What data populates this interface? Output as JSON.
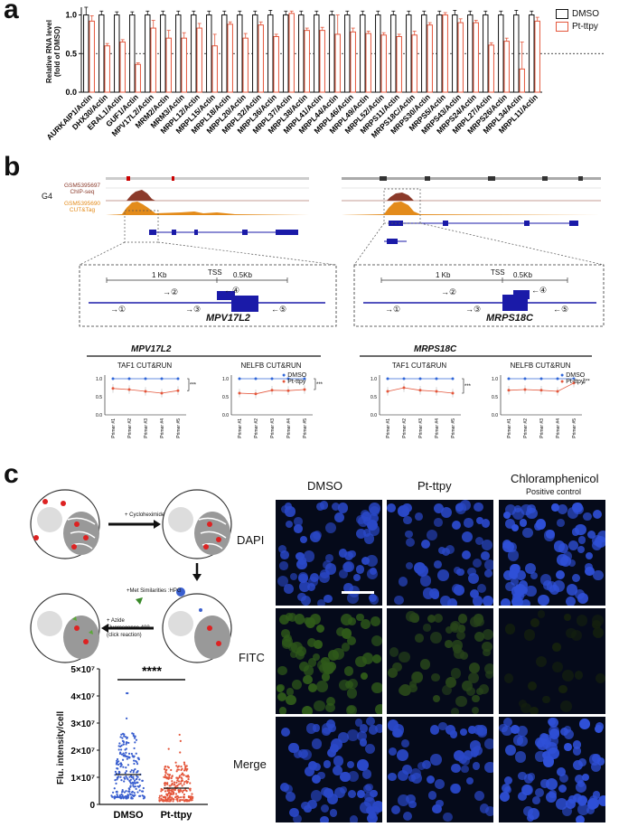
{
  "panel_a": {
    "letter": "a",
    "ylabel_line1": "Relative RNA level",
    "ylabel_line2": "(fold of DMSO)",
    "legend": [
      "DMSO",
      "Pt-ttpy"
    ],
    "colors": {
      "dmso": "#111111",
      "pt": "#e4573c"
    }
  },
  "chart_data": [
    {
      "type": "bar",
      "title": "",
      "ylabel": "Relative RNA level (fold of DMSO)",
      "ylim": [
        0,
        1.1
      ],
      "yticks": [
        0.0,
        0.5,
        1.0
      ],
      "reference_line": 0.5,
      "categories": [
        "AURKAIP1/Actin",
        "DHX30/Actin",
        "ERAL1/Actin",
        "GUF1/Actin",
        "MPV17L2/Actin",
        "MRM2/Actin",
        "MRM3/Actin",
        "MRPL12/Actin",
        "MRPL15/Actin",
        "MRPL18/Actin",
        "MRPL20/Actin",
        "MRPL32/Actin",
        "MRPL36/Actin",
        "MRPL37/Actin",
        "MRPL38/Actin",
        "MRPL41/Actin",
        "MRPL44/Actin",
        "MRPL46/Actin",
        "MRPL49/Actin",
        "MRPL52/Actin",
        "MRPS11/Actin",
        "MRPS18C/Actin",
        "MRPS30/Actin",
        "MRPS5/Actin",
        "MRPS43/Actin",
        "MRPS24/Actin",
        "MRPL27/Actin",
        "MRPS26/Actin",
        "MRPL34/Actin",
        "MRPL11/Actin"
      ],
      "series": [
        {
          "name": "DMSO",
          "values": [
            1,
            1,
            1,
            1,
            1,
            1,
            1,
            1,
            1,
            1,
            1,
            1,
            1,
            1,
            1,
            1,
            1,
            1,
            1,
            1,
            1,
            1,
            1,
            1,
            1,
            1,
            1,
            1,
            1,
            1
          ],
          "errors": [
            0.1,
            0.05,
            0.04,
            0.04,
            0.05,
            0.05,
            0.05,
            0.05,
            0.05,
            0.05,
            0.05,
            0.05,
            0.06,
            0.05,
            0.05,
            0.05,
            0.05,
            0.05,
            0.05,
            0.05,
            0.05,
            0.05,
            0.05,
            0.05,
            0.06,
            0.05,
            0.05,
            0.05,
            0.06,
            0.05
          ]
        },
        {
          "name": "Pt-ttpy",
          "values": [
            0.92,
            0.6,
            0.65,
            0.36,
            0.83,
            0.7,
            0.7,
            0.83,
            0.6,
            0.88,
            0.7,
            0.87,
            0.72,
            1.02,
            0.8,
            0.8,
            0.75,
            0.78,
            0.76,
            0.74,
            0.72,
            0.74,
            0.87,
            1.0,
            0.9,
            0.9,
            0.61,
            0.66,
            0.3,
            0.92
          ],
          "errors": [
            0.07,
            0.03,
            0.03,
            0.02,
            0.1,
            0.1,
            0.07,
            0.06,
            0.15,
            0.03,
            0.06,
            0.04,
            0.03,
            0.03,
            0.03,
            0.04,
            0.25,
            0.05,
            0.03,
            0.03,
            0.03,
            0.05,
            0.03,
            0.03,
            0.05,
            0.03,
            0.03,
            0.04,
            0.35,
            0.05
          ]
        }
      ]
    },
    {
      "type": "line",
      "title": "TAF1 CUT&RUN",
      "group": "MPV17L2",
      "categories": [
        "Primer #1",
        "Primer #2",
        "Primer #3",
        "Primer #4",
        "Primer #5"
      ],
      "yticks": [
        0.0,
        0.5,
        1.0
      ],
      "ylim": [
        0,
        1.1
      ],
      "significance": "***",
      "series": [
        {
          "name": "DMSO",
          "values": [
            1,
            1,
            1,
            1,
            1
          ]
        },
        {
          "name": "Pt-ttpy",
          "values": [
            0.73,
            0.7,
            0.65,
            0.6,
            0.67
          ]
        }
      ]
    },
    {
      "type": "line",
      "title": "NELFB CUT&RUN",
      "group": "MPV17L2",
      "categories": [
        "Primer #1",
        "Primer #2",
        "Primer #3",
        "Primer #4",
        "Primer #5"
      ],
      "yticks": [
        0.0,
        0.5,
        1.0
      ],
      "ylim": [
        0,
        1.1
      ],
      "significance": "***",
      "series": [
        {
          "name": "DMSO",
          "values": [
            1,
            1,
            1,
            1,
            1
          ]
        },
        {
          "name": "Pt-ttpy",
          "values": [
            0.6,
            0.58,
            0.68,
            0.67,
            0.7
          ]
        }
      ]
    },
    {
      "type": "line",
      "title": "TAF1 CUT&RUN",
      "group": "MRPS18C",
      "categories": [
        "Primer #1",
        "Primer #2",
        "Primer #3",
        "Primer #4",
        "Primer #5"
      ],
      "yticks": [
        0.0,
        0.5,
        1.0
      ],
      "ylim": [
        0,
        1.1
      ],
      "significance": "***",
      "series": [
        {
          "name": "DMSO",
          "values": [
            1,
            1,
            1,
            1,
            1
          ]
        },
        {
          "name": "Pt-ttpy",
          "values": [
            0.65,
            0.75,
            0.68,
            0.65,
            0.6
          ]
        }
      ]
    },
    {
      "type": "line",
      "title": "NELFB CUT&RUN",
      "group": "MRPS18C",
      "categories": [
        "Primer #1",
        "Primer #2",
        "Primer #3",
        "Primer #4",
        "Primer #5"
      ],
      "yticks": [
        0.0,
        0.5,
        1.0
      ],
      "ylim": [
        0,
        1.1
      ],
      "significance": "**",
      "series": [
        {
          "name": "DMSO",
          "values": [
            1,
            1,
            1,
            1,
            1
          ]
        },
        {
          "name": "Pt-ttpy",
          "values": [
            0.68,
            0.7,
            0.68,
            0.65,
            0.88
          ]
        }
      ]
    },
    {
      "type": "scatter",
      "title": "",
      "ylabel": "Flu. intensity/cell",
      "categories": [
        "DMSO",
        "Pt-ttpy"
      ],
      "yticks": [
        "0",
        "1×10⁷",
        "2×10⁷",
        "3×10⁷",
        "4×10⁷",
        "5×10⁷"
      ],
      "ylim": [
        0,
        50000000
      ],
      "significance": "****",
      "series": [
        {
          "name": "DMSO",
          "median": 11000000,
          "max": 41000000
        },
        {
          "name": "Pt-ttpy",
          "median": 6000000,
          "max": 33000000
        }
      ]
    }
  ],
  "panel_b": {
    "letter": "b",
    "track_group": "G4",
    "track1_id": "GSM5395697",
    "track1_type": "ChIP-seq",
    "track2_id": "GSM5395690",
    "track2_type": "CUT&Tag",
    "gene_left": "MPV17L2",
    "gene_right": "MRPS18C",
    "scale_1kb": "1 Kb",
    "scale_05kb": "0.5Kb",
    "tss": "TSS",
    "primers": [
      "①",
      "②",
      "③",
      "④",
      "⑤"
    ],
    "legend": [
      "DMSO",
      "Pt-ttpy"
    ]
  },
  "panel_c": {
    "letter": "c",
    "step1": "+ Cycloheximide",
    "step2": "+Met Similarities :HPG",
    "step3_line1": "+ Azide",
    "step3_line2": "Fluorescence 488",
    "step3_line3": "(click reaction)",
    "col_headers": [
      "DMSO",
      "Pt-ttpy",
      "Chloramphenicol"
    ],
    "col_sub": "Positive control",
    "row_labels": [
      "DAPI",
      "FITC",
      "Merge"
    ]
  }
}
